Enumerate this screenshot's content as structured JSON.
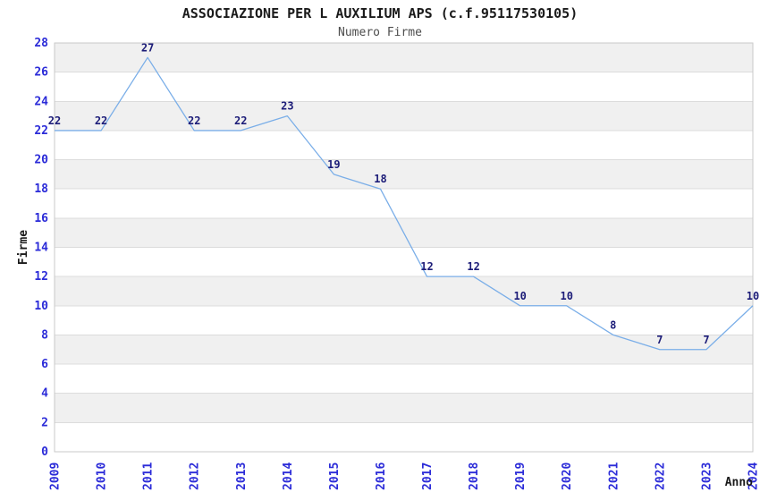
{
  "chart_data": {
    "type": "line",
    "title": "ASSOCIAZIONE PER L AUXILIUM APS (c.f.95117530105)",
    "subtitle": "Numero Firme",
    "xlabel": "Anno",
    "ylabel": "Firme",
    "x": [
      "2009",
      "2010",
      "2011",
      "2012",
      "2013",
      "2014",
      "2015",
      "2016",
      "2017",
      "2018",
      "2019",
      "2020",
      "2021",
      "2022",
      "2023",
      "2024"
    ],
    "series": [
      {
        "name": "Numero Firme",
        "values": [
          22,
          22,
          27,
          22,
          22,
          23,
          19,
          18,
          12,
          12,
          10,
          10,
          8,
          7,
          7,
          10
        ]
      }
    ],
    "ylim": [
      0,
      28
    ],
    "ytick_step": 2,
    "point_labels_shown": true,
    "grid": "horizontal-bands-alternating",
    "legend_position": "none",
    "colors": {
      "line": "#7aaee8",
      "point_label": "#1c1c78",
      "tick_label": "#2b2bd8",
      "band_fill": "#f0f0f0",
      "gridline": "#dcdcdc",
      "plot_border": "#c9c9c9",
      "title": "#1a1a1a",
      "subtitle": "#4d4d4d",
      "axis_title": "#1a1a1a",
      "background": "#ffffff"
    }
  }
}
